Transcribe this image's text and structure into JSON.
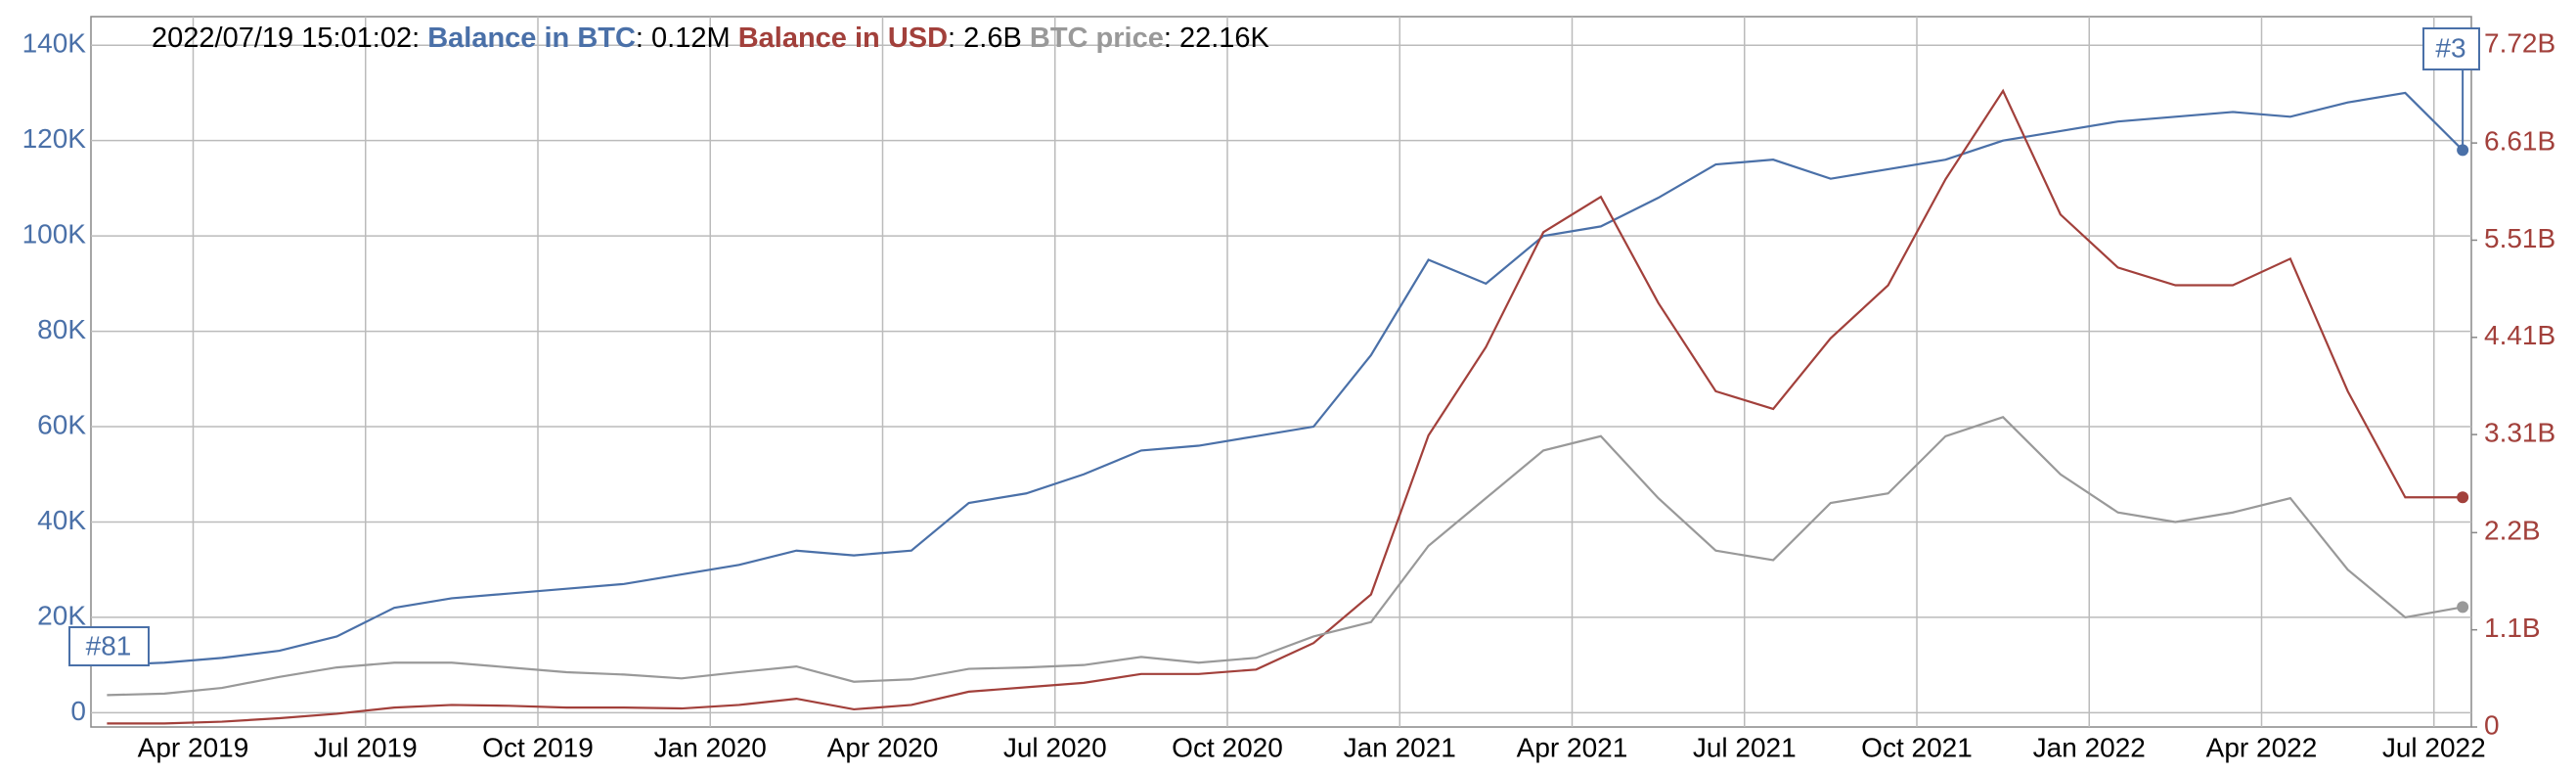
{
  "chart_data": {
    "type": "line",
    "header": {
      "timestamp": "2022/07/19 15:01:02:"
    },
    "x": [
      "2019-02",
      "2019-03",
      "2019-04",
      "2019-05",
      "2019-06",
      "2019-07",
      "2019-08",
      "2019-09",
      "2019-10",
      "2019-11",
      "2019-12",
      "2020-01",
      "2020-02",
      "2020-03",
      "2020-04",
      "2020-05",
      "2020-06",
      "2020-07",
      "2020-08",
      "2020-09",
      "2020-10",
      "2020-11",
      "2020-12",
      "2021-01",
      "2021-02",
      "2021-03",
      "2021-04",
      "2021-05",
      "2021-06",
      "2021-07",
      "2021-08",
      "2021-09",
      "2021-10",
      "2021-11",
      "2021-12",
      "2022-01",
      "2022-02",
      "2022-03",
      "2022-04",
      "2022-05",
      "2022-06",
      "2022-07"
    ],
    "xticks": [
      {
        "value": "2019-04",
        "label": "Apr 2019"
      },
      {
        "value": "2019-07",
        "label": "Jul 2019"
      },
      {
        "value": "2019-10",
        "label": "Oct 2019"
      },
      {
        "value": "2020-01",
        "label": "Jan 2020"
      },
      {
        "value": "2020-04",
        "label": "Apr 2020"
      },
      {
        "value": "2020-07",
        "label": "Jul 2020"
      },
      {
        "value": "2020-10",
        "label": "Oct 2020"
      },
      {
        "value": "2021-01",
        "label": "Jan 2021"
      },
      {
        "value": "2021-04",
        "label": "Apr 2021"
      },
      {
        "value": "2021-07",
        "label": "Jul 2021"
      },
      {
        "value": "2021-10",
        "label": "Oct 2021"
      },
      {
        "value": "2022-01",
        "label": "Jan 2022"
      },
      {
        "value": "2022-04",
        "label": "Apr 2022"
      },
      {
        "value": "2022-07",
        "label": "Jul 2022"
      }
    ],
    "ylim": [
      -3000,
      146000
    ],
    "yticks": [
      0,
      {
        "value": 20000,
        "label": "20K"
      },
      {
        "value": 40000,
        "label": "40K"
      },
      {
        "value": 60000,
        "label": "60K"
      },
      {
        "value": 80000,
        "label": "80K"
      },
      {
        "value": 100000,
        "label": "100K"
      },
      {
        "value": 120000,
        "label": "120K"
      },
      {
        "value": 140000,
        "label": "140K"
      }
    ],
    "y2lim": [
      0,
      8040000000
    ],
    "y2ticks": [
      0,
      {
        "value": 1100000000,
        "label": "1.1B"
      },
      {
        "value": 2200000000,
        "label": "2.2B"
      },
      {
        "value": 3310000000,
        "label": "3.31B"
      },
      {
        "value": 4410000000,
        "label": "4.41B"
      },
      {
        "value": 5510000000,
        "label": "5.51B"
      },
      {
        "value": 6610000000,
        "label": "6.61B"
      },
      {
        "value": 7720000000,
        "label": "7.72B"
      }
    ],
    "grid": true,
    "series": [
      {
        "name": "Balance in BTC",
        "readout": ": 0.12M",
        "color": "#4a70a8",
        "axis": "y",
        "values": [
          10000,
          10500,
          11500,
          13000,
          16000,
          22000,
          24000,
          25000,
          26000,
          27000,
          29000,
          31000,
          34000,
          33000,
          34000,
          44000,
          46000,
          50000,
          55000,
          56000,
          58000,
          60000,
          75000,
          95000,
          90000,
          100000,
          102000,
          108000,
          115000,
          116000,
          112000,
          114000,
          116000,
          120000,
          122000,
          124000,
          125000,
          126000,
          125000,
          128000,
          130000,
          118000
        ]
      },
      {
        "name": "Balance in USD",
        "readout": ": 2.6B",
        "color": "#a2403b",
        "axis": "y2",
        "values": [
          40000000.0,
          40000000.0,
          60000000.0,
          100000000.0,
          150000000.0,
          220000000.0,
          250000000.0,
          240000000.0,
          220000000.0,
          220000000.0,
          210000000.0,
          250000000.0,
          320000000.0,
          200000000.0,
          250000000.0,
          400000000.0,
          450000000.0,
          500000000.0,
          600000000.0,
          600000000.0,
          650000000.0,
          950000000.0,
          1500000000.0,
          3300000000.0,
          4300000000.0,
          5600000000.0,
          6000000000.0,
          4800000000.0,
          3800000000.0,
          3600000000.0,
          4400000000.0,
          5000000000.0,
          6200000000.0,
          7200000000.0,
          5800000000.0,
          5200000000.0,
          5000000000.0,
          5000000000.0,
          5300000000.0,
          3800000000.0,
          2600000000.0,
          2600000000.0
        ]
      },
      {
        "name": "BTC price",
        "readout": ": 22.16K",
        "color": "#999999",
        "axis": "y",
        "values": [
          3700,
          4000,
          5200,
          7500,
          9500,
          10500,
          10500,
          9500,
          8500,
          8000,
          7200,
          8500,
          9700,
          6500,
          7000,
          9200,
          9500,
          10000,
          11700,
          10500,
          11500,
          16000,
          19000,
          35000,
          45000,
          55000,
          58000,
          45000,
          34000,
          32000,
          44000,
          46000,
          58000,
          62000,
          50000,
          42000,
          40000,
          42000,
          45000,
          30000,
          20000,
          22160
        ]
      }
    ],
    "annotations": [
      {
        "label": "#81"
      },
      {
        "label": "#3"
      }
    ]
  }
}
